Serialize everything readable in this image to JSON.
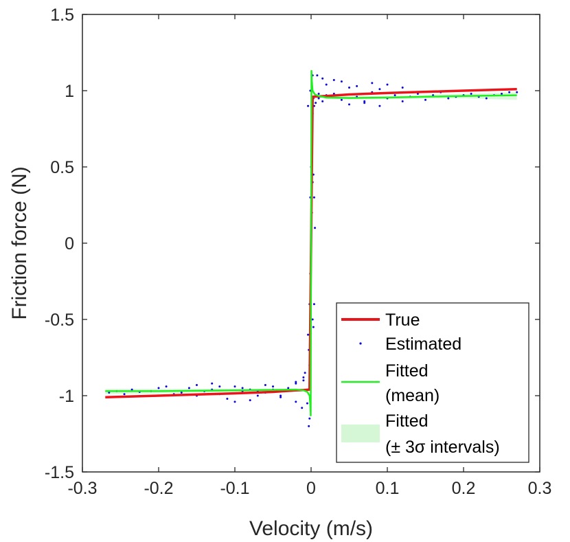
{
  "chart_data": {
    "type": "scatter",
    "title": "",
    "xlabel": "Velocity (m/s)",
    "ylabel": "Friction force (N)",
    "xlim": [
      -0.3,
      0.3
    ],
    "ylim": [
      -1.5,
      1.5
    ],
    "x_ticks": [
      -0.3,
      -0.2,
      -0.1,
      0,
      0.1,
      0.2,
      0.3
    ],
    "x_tick_labels": [
      "-0.3",
      "-0.2",
      "-0.1",
      "0",
      "0.1",
      "0.2",
      "0.3"
    ],
    "y_ticks": [
      -1.5,
      -1,
      -0.5,
      0,
      0.5,
      1,
      1.5
    ],
    "y_tick_labels": [
      "-1.5",
      "-1",
      "-0.5",
      "0",
      "0.5",
      "1",
      "1.5"
    ],
    "grid": false,
    "legend_position": "bottom-right",
    "series": [
      {
        "name": "True",
        "style": "line",
        "color": "#e8151b",
        "x": [
          -0.27,
          -0.2,
          -0.1,
          -0.05,
          -0.02,
          -0.01,
          -0.002,
          0.002,
          0.01,
          0.02,
          0.05,
          0.1,
          0.2,
          0.27
        ],
        "y": [
          -1.01,
          -1.0,
          -0.985,
          -0.975,
          -0.965,
          -0.963,
          -0.96,
          0.96,
          0.963,
          0.965,
          0.975,
          0.985,
          1.0,
          1.01
        ]
      },
      {
        "name": "Estimated",
        "style": "points",
        "color": "#0a0ad8",
        "x": [
          -0.265,
          -0.255,
          -0.245,
          -0.235,
          -0.225,
          -0.21,
          -0.2,
          -0.19,
          -0.18,
          -0.17,
          -0.16,
          -0.15,
          -0.14,
          -0.13,
          -0.12,
          -0.11,
          -0.1,
          -0.09,
          -0.08,
          -0.07,
          -0.06,
          -0.05,
          -0.04,
          -0.03,
          -0.02,
          -0.01,
          -0.005,
          -0.15,
          -0.12,
          -0.1,
          -0.08,
          -0.06,
          -0.04,
          -0.02,
          -0.13,
          -0.09,
          -0.07,
          -0.05,
          -0.03,
          -0.02,
          -0.01,
          -0.012,
          -0.008,
          -0.004,
          -0.003,
          -0.002,
          -0.002,
          -0.001,
          -0.001,
          0,
          0,
          0.001,
          0.001,
          0.002,
          0.002,
          0.003,
          0.004,
          0.005,
          0.004,
          0.003,
          0.002,
          0.001,
          -0.001,
          -0.002,
          -0.003,
          -0.004,
          0.002,
          0.003,
          0.004,
          0.006,
          0.01,
          0.015,
          0.02,
          0.03,
          0.04,
          0.05,
          0.06,
          0.07,
          0.08,
          0.09,
          0.1,
          0.11,
          0.12,
          0.13,
          0.14,
          0.15,
          0.16,
          0.17,
          0.18,
          0.19,
          0.2,
          0.21,
          0.22,
          0.23,
          0.24,
          0.25,
          0.26,
          0.27,
          0.02,
          0.04,
          0.06,
          0.08,
          0.1,
          0.12,
          0.05,
          0.07,
          0.09,
          0.03,
          0.015,
          0.01,
          0.008
        ],
        "y": [
          -0.98,
          -0.97,
          -0.99,
          -0.96,
          -0.975,
          -0.97,
          -0.95,
          -0.94,
          -0.99,
          -0.98,
          -0.95,
          -1.0,
          -0.97,
          -0.96,
          -0.99,
          -1.02,
          -0.94,
          -0.95,
          -1.03,
          -0.97,
          -0.93,
          -0.96,
          -1.0,
          -0.95,
          -0.92,
          -0.9,
          -1.05,
          -0.93,
          -0.94,
          -1.04,
          -0.96,
          -0.98,
          -1.01,
          -1.04,
          -0.92,
          -0.97,
          -1.0,
          -0.94,
          -0.96,
          -0.91,
          -0.88,
          -1.08,
          -0.85,
          -0.6,
          -0.7,
          -0.4,
          -0.8,
          -0.2,
          0.3,
          -0.1,
          0.5,
          0.7,
          0.2,
          0.4,
          -0.5,
          0.45,
          0.3,
          0.1,
          -0.4,
          -0.55,
          0.85,
          1.05,
          1.0,
          -1.15,
          -1.2,
          0.9,
          1.1,
          0.95,
          0.9,
          0.92,
          0.95,
          0.93,
          0.97,
          0.98,
          0.94,
          1.02,
          0.96,
          0.93,
          0.99,
          1.01,
          0.95,
          0.97,
          0.93,
          0.96,
          0.98,
          0.94,
          0.97,
          0.99,
          0.95,
          0.96,
          0.97,
          0.98,
          0.96,
          0.95,
          0.97,
          0.98,
          0.99,
          0.99,
          1.04,
          1.06,
          1.03,
          1.05,
          1.04,
          1.02,
          0.91,
          0.92,
          0.9,
          1.07,
          1.08,
          0.98,
          1.1
        ]
      },
      {
        "name": "Fitted",
        "name_line2": "(mean)",
        "style": "line",
        "color": "#22ee22",
        "x": [
          -0.27,
          -0.2,
          -0.1,
          -0.05,
          -0.02,
          -0.01,
          -0.005,
          -0.002,
          -0.001,
          -0.0005,
          0,
          0.0005,
          0.001,
          0.002,
          0.005,
          0.01,
          0.02,
          0.05,
          0.1,
          0.2,
          0.27
        ],
        "y": [
          -0.97,
          -0.97,
          -0.965,
          -0.962,
          -0.96,
          -0.965,
          -0.975,
          -1.0,
          -1.06,
          -1.13,
          0,
          1.13,
          1.06,
          1.0,
          0.975,
          0.965,
          0.955,
          0.952,
          0.955,
          0.965,
          0.97
        ]
      },
      {
        "name": "Fitted",
        "name_line2": "(± 3σ intervals)",
        "style": "band",
        "color": "#d6f7d6",
        "x": [
          -0.27,
          -0.2,
          -0.1,
          -0.05,
          -0.02,
          0.02,
          0.05,
          0.1,
          0.2,
          0.27
        ],
        "lower": [
          -0.99,
          -0.985,
          -0.975,
          -0.97,
          -0.97,
          0.945,
          0.942,
          0.945,
          0.95,
          0.94
        ],
        "upper": [
          -0.955,
          -0.955,
          -0.955,
          -0.955,
          -0.955,
          0.965,
          0.962,
          0.965,
          0.98,
          0.99
        ]
      }
    ]
  }
}
